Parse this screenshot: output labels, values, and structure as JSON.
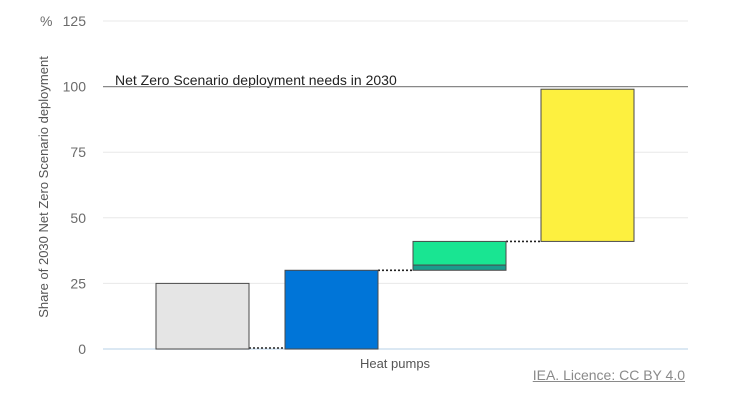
{
  "chart_data": {
    "type": "bar",
    "subtype": "waterfall",
    "ylabel": "Share of 2030 Net Zero Scenario deployment",
    "yunit": "%",
    "ylim": [
      0,
      125
    ],
    "yticks": [
      0,
      25,
      50,
      75,
      100,
      125
    ],
    "category": "Heat pumps",
    "grid": true,
    "reference_line": {
      "value": 100,
      "label": "Net Zero Scenario deployment needs in 2030"
    },
    "segments": [
      {
        "name": "bar-1",
        "start": 0,
        "end": 25,
        "color": "#e5e5e5"
      },
      {
        "name": "bar-2",
        "start": 0,
        "end": 30,
        "color": "#0075d8"
      },
      {
        "name": "bar-3-lower",
        "start": 30,
        "end": 32,
        "color": "#1a9c8c"
      },
      {
        "name": "bar-3-upper",
        "start": 32,
        "end": 41,
        "color": "#19e592"
      },
      {
        "name": "bar-4",
        "start": 41,
        "end": 99,
        "color": "#fdf03f"
      }
    ],
    "connectors": [
      {
        "value": 0
      },
      {
        "value": 30
      },
      {
        "value": 41
      }
    ]
  },
  "footer": {
    "source": "IEA. Licence: CC BY 4.0"
  }
}
